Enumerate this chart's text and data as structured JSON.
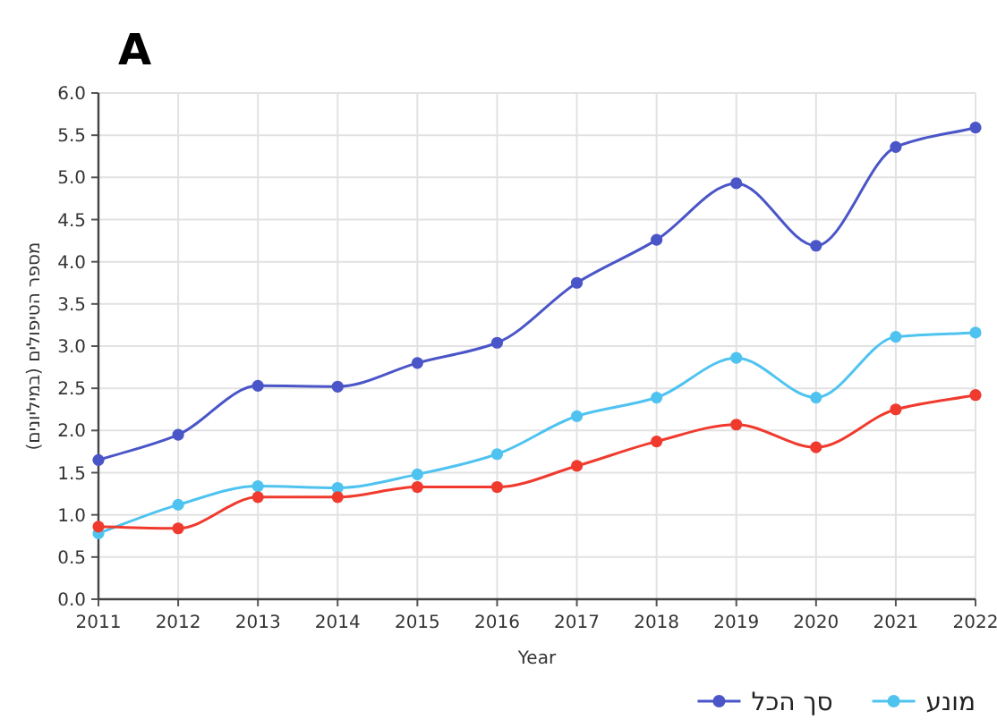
{
  "chart_data": {
    "type": "line",
    "x": [
      2011,
      2012,
      2013,
      2014,
      2015,
      2016,
      2017,
      2018,
      2019,
      2020,
      2021,
      2022
    ],
    "series": [
      {
        "name": "סך הכל",
        "color": "#4a55c8",
        "values": [
          1.65,
          1.95,
          2.53,
          2.52,
          2.8,
          3.04,
          3.75,
          4.26,
          4.93,
          4.19,
          5.36,
          5.59
        ]
      },
      {
        "name": "מונע",
        "color": "#4fc3f0",
        "values": [
          0.78,
          1.12,
          1.34,
          1.32,
          1.48,
          1.72,
          2.17,
          2.39,
          2.86,
          2.39,
          3.11,
          3.16
        ]
      },
      {
        "color": "#f03a2e",
        "values": [
          0.86,
          0.84,
          1.21,
          1.21,
          1.33,
          1.33,
          1.58,
          1.87,
          2.07,
          1.8,
          2.25,
          2.42
        ]
      }
    ],
    "xlabel": "Year",
    "ylabel": "מספר הטיפולים (במיליונים)",
    "annotations": [
      "A"
    ],
    "xlim": [
      2011,
      2022
    ],
    "xticks": [
      2011,
      2012,
      2013,
      2014,
      2015,
      2016,
      2017,
      2018,
      2019,
      2020,
      2021,
      2022
    ],
    "ylim": [
      0,
      6
    ],
    "yticks": [
      {
        "value": 0,
        "label": "0.0"
      },
      {
        "value": 0.5,
        "label": "0.5"
      },
      {
        "value": 1,
        "label": "1.0"
      },
      {
        "value": 1.5,
        "label": "1.5"
      },
      {
        "value": 2,
        "label": "2.0"
      },
      {
        "value": 2.5,
        "label": "2.5"
      },
      {
        "value": 3,
        "label": "3.0"
      },
      {
        "value": 3.5,
        "label": "3.5"
      },
      {
        "value": 4,
        "label": "4.0"
      },
      {
        "value": 4.5,
        "label": "4.5"
      },
      {
        "value": 5,
        "label": "5.0"
      },
      {
        "value": 5.5,
        "label": "5.5"
      },
      {
        "value": 6,
        "label": "6.0"
      }
    ],
    "grid": true,
    "legend": "bottom right",
    "marker": "circle",
    "line_style": "solid"
  }
}
